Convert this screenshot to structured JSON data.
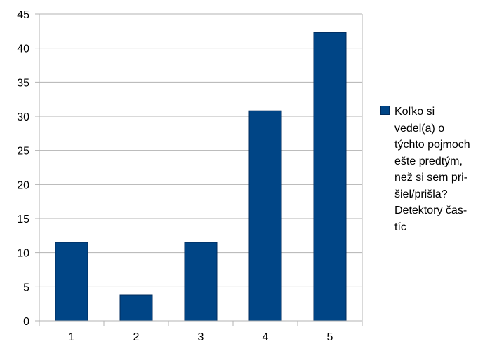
{
  "chart_data": {
    "type": "bar",
    "title": "",
    "xlabel": "",
    "ylabel": "",
    "categories": [
      "1",
      "2",
      "3",
      "4",
      "5"
    ],
    "series": [
      {
        "name": "Koľko si vedel(a) o týchto pojmoch ešte predtým, než si sem prišiel/prišla? Detektory častíc",
        "values": [
          11.5,
          3.8,
          11.5,
          30.8,
          42.3
        ]
      }
    ],
    "ylim": [
      0,
      45
    ],
    "yticks": [
      "0",
      "5",
      "10",
      "15",
      "20",
      "25",
      "30",
      "35",
      "40",
      "45"
    ],
    "grid": true,
    "legend_position": "right",
    "colors": {
      "bar": "#004586",
      "grid": "#b3b3b3",
      "axis": "#b3b3b3"
    }
  },
  "legend": {
    "text": "Koľko si\nvedel(a) o\ntýchto pojmoch\nešte predtým,\nnež si sem pri-\nšiel/prišla?\nDetektory čas-\ntíc"
  }
}
